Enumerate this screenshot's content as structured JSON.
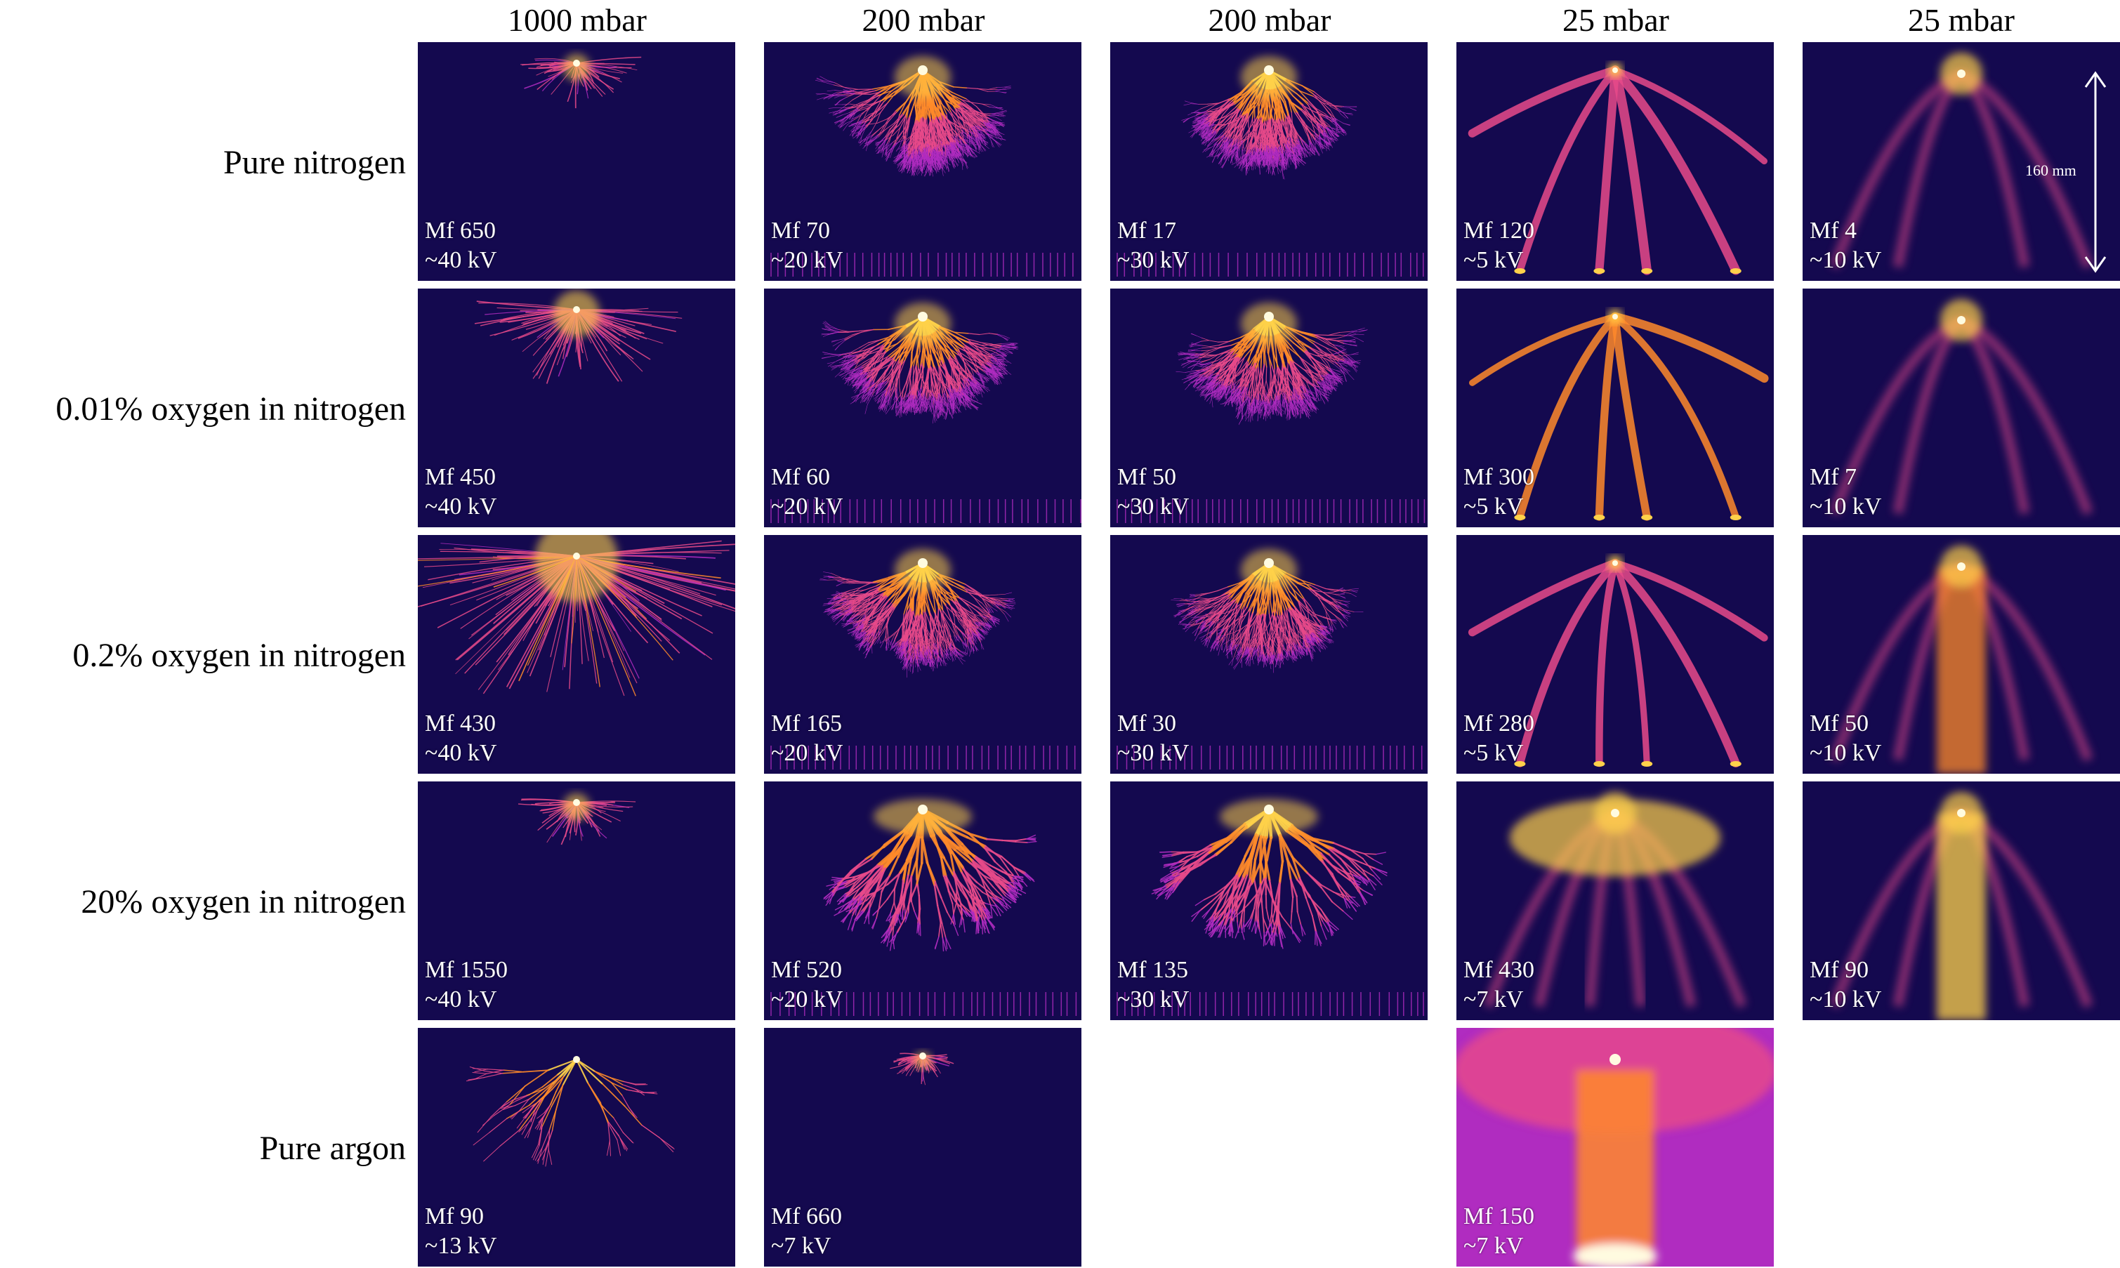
{
  "columns": [
    "1000 mbar",
    "200 mbar",
    "200 mbar",
    "25 mbar",
    "25 mbar"
  ],
  "rows": [
    "Pure nitrogen",
    "0.01% oxygen in nitrogen",
    "0.2% oxygen in nitrogen",
    "20% oxygen in nitrogen",
    "Pure argon"
  ],
  "scale_bar_label": "160 mm",
  "colormap": [
    "#14094f",
    "#5b1aa8",
    "#b02cc0",
    "#e84a8a",
    "#ff8a2a",
    "#ffd24a",
    "#fffbe0"
  ],
  "panels": [
    {
      "row": 0,
      "col": 0,
      "mf": "Mf 650",
      "kv": "~40 kV",
      "style": "small-burst",
      "intensity": 0.45
    },
    {
      "row": 0,
      "col": 1,
      "mf": "Mf 70",
      "kv": "~20 kV",
      "style": "dense-tree",
      "intensity": 0.8
    },
    {
      "row": 0,
      "col": 2,
      "mf": "Mf 17",
      "kv": "~30 kV",
      "style": "dense-tree",
      "intensity": 0.9
    },
    {
      "row": 0,
      "col": 3,
      "mf": "Mf 120",
      "kv": "~5 kV",
      "style": "few-channels",
      "intensity": 0.6
    },
    {
      "row": 0,
      "col": 4,
      "mf": "Mf 4",
      "kv": "~10 kV",
      "style": "diffuse-channels",
      "intensity": 0.55
    },
    {
      "row": 1,
      "col": 0,
      "mf": "Mf 450",
      "kv": "~40 kV",
      "style": "medium-burst",
      "intensity": 0.6
    },
    {
      "row": 1,
      "col": 1,
      "mf": "Mf 60",
      "kv": "~20 kV",
      "style": "dense-tree",
      "intensity": 0.85
    },
    {
      "row": 1,
      "col": 2,
      "mf": "Mf 50",
      "kv": "~30 kV",
      "style": "dense-tree",
      "intensity": 0.9
    },
    {
      "row": 1,
      "col": 3,
      "mf": "Mf 300",
      "kv": "~5 kV",
      "style": "few-channels",
      "intensity": 0.75
    },
    {
      "row": 1,
      "col": 4,
      "mf": "Mf 7",
      "kv": "~10 kV",
      "style": "diffuse-channels",
      "intensity": 0.65
    },
    {
      "row": 2,
      "col": 0,
      "mf": "Mf 430",
      "kv": "~40 kV",
      "style": "large-burst",
      "intensity": 0.7
    },
    {
      "row": 2,
      "col": 1,
      "mf": "Mf 165",
      "kv": "~20 kV",
      "style": "dense-tree",
      "intensity": 1.0
    },
    {
      "row": 2,
      "col": 2,
      "mf": "Mf 30",
      "kv": "~30 kV",
      "style": "dense-tree",
      "intensity": 0.95
    },
    {
      "row": 2,
      "col": 3,
      "mf": "Mf 280",
      "kv": "~5 kV",
      "style": "few-channels",
      "intensity": 0.65
    },
    {
      "row": 2,
      "col": 4,
      "mf": "Mf 50",
      "kv": "~10 kV",
      "style": "diffuse-column",
      "intensity": 0.7
    },
    {
      "row": 3,
      "col": 0,
      "mf": "Mf 1550",
      "kv": "~40 kV",
      "style": "small-burst",
      "intensity": 0.55
    },
    {
      "row": 3,
      "col": 1,
      "mf": "Mf 520",
      "kv": "~20 kV",
      "style": "thick-tree",
      "intensity": 0.8
    },
    {
      "row": 3,
      "col": 2,
      "mf": "Mf 135",
      "kv": "~30 kV",
      "style": "thick-tree",
      "intensity": 0.85
    },
    {
      "row": 3,
      "col": 3,
      "mf": "Mf 430",
      "kv": "~7 kV",
      "style": "glow-channels",
      "intensity": 0.85
    },
    {
      "row": 3,
      "col": 4,
      "mf": "Mf 90",
      "kv": "~10 kV",
      "style": "diffuse-column",
      "intensity": 0.95
    },
    {
      "row": 4,
      "col": 0,
      "mf": "Mf 90",
      "kv": "~13 kV",
      "style": "sparse-burst",
      "intensity": 0.5
    },
    {
      "row": 4,
      "col": 1,
      "mf": "Mf 660",
      "kv": "~7 kV",
      "style": "tiny-burst",
      "intensity": 0.6
    },
    {
      "row": 4,
      "col": 3,
      "mf": "Mf 150",
      "kv": "~7 kV",
      "style": "full-glow",
      "intensity": 1.0
    }
  ]
}
